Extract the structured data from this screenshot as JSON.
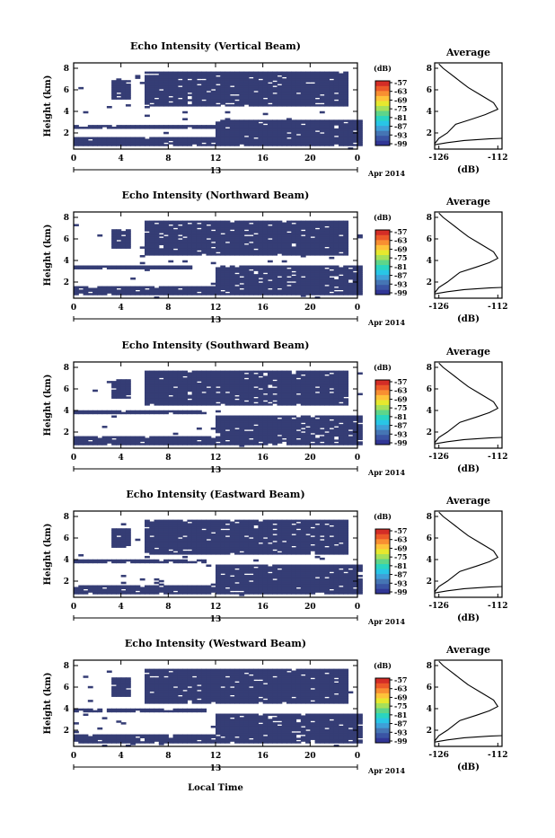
{
  "xlabel": "Local Time",
  "date_label": "Apr 2014",
  "day_label": "13",
  "x_ticks": [
    "0",
    "4",
    "8",
    "12",
    "16",
    "20",
    "0"
  ],
  "y_ticks": [
    "2",
    "4",
    "6",
    "8"
  ],
  "ylabel": "Height (km)",
  "colorbar": {
    "unit": "(dB)",
    "ticks": [
      "-57",
      "-63",
      "-69",
      "-75",
      "-81",
      "-87",
      "-93",
      "-99"
    ],
    "colors": [
      "#313695",
      "#3a54a4",
      "#4575b4",
      "#3f9fd8",
      "#29c5e6",
      "#2ad5c0",
      "#5ed58a",
      "#a6e05a",
      "#e6e82e",
      "#fec33a",
      "#f88f31",
      "#ec5a29",
      "#d42d26"
    ]
  },
  "fill_color": "#353d75",
  "avg_title": "Average",
  "avg_xticks": [
    "-126",
    "-112"
  ],
  "avg_xlabel": "(dB)",
  "avg_yticks": [
    "2",
    "4",
    "6",
    "8"
  ],
  "chart_data": [
    {
      "type": "heatmap",
      "title": "Echo Intensity (Vertical Beam)",
      "xlim": [
        0,
        24
      ],
      "ylim": [
        0.5,
        8.5
      ],
      "xlabel": "Local Time",
      "ylabel": "Height (km)",
      "regions": [
        {
          "t": [
            3,
            4.8
          ],
          "h": [
            5.0,
            6.8
          ]
        },
        {
          "t": [
            5.8,
            23
          ],
          "h": [
            4.5,
            7.6
          ]
        },
        {
          "t": [
            0,
            24
          ],
          "h": [
            0.8,
            1.5
          ]
        },
        {
          "t": [
            12,
            24
          ],
          "h": [
            1.6,
            3.2
          ]
        },
        {
          "t": [
            0,
            12
          ],
          "h": [
            2.3,
            2.7
          ]
        }
      ],
      "average": {
        "x": [
          -127,
          -126,
          -124,
          -122,
          -118,
          -115,
          -112,
          -113,
          -116,
          -119,
          -121,
          -123,
          -125,
          -126
        ],
        "y": [
          1.0,
          1.5,
          2.0,
          2.8,
          3.3,
          3.7,
          4.2,
          4.8,
          5.5,
          6.2,
          6.8,
          7.4,
          8.0,
          8.4
        ]
      }
    },
    {
      "type": "heatmap",
      "title": "Echo Intensity (Northward Beam)",
      "xlim": [
        0,
        24
      ],
      "ylim": [
        0.5,
        8.5
      ],
      "regions": [
        {
          "t": [
            3,
            4.8
          ],
          "h": [
            5.0,
            6.8
          ]
        },
        {
          "t": [
            5.8,
            23
          ],
          "h": [
            4.5,
            7.6
          ]
        },
        {
          "t": [
            0,
            24
          ],
          "h": [
            0.8,
            1.5
          ]
        },
        {
          "t": [
            12,
            24
          ],
          "h": [
            1.6,
            3.4
          ]
        },
        {
          "t": [
            0,
            10
          ],
          "h": [
            3.2,
            3.5
          ]
        }
      ],
      "average": {
        "x": [
          -127,
          -126,
          -124,
          -121,
          -117,
          -114,
          -112,
          -113,
          -116,
          -119,
          -121,
          -123,
          -125,
          -126
        ],
        "y": [
          1.0,
          1.5,
          2.0,
          2.9,
          3.4,
          3.8,
          4.2,
          4.8,
          5.5,
          6.2,
          6.8,
          7.4,
          8.0,
          8.4
        ]
      }
    },
    {
      "type": "heatmap",
      "title": "Echo Intensity (Southward Beam)",
      "xlim": [
        0,
        24
      ],
      "ylim": [
        0.5,
        8.5
      ],
      "regions": [
        {
          "t": [
            3,
            4.8
          ],
          "h": [
            5.0,
            6.8
          ]
        },
        {
          "t": [
            5.8,
            23
          ],
          "h": [
            4.5,
            7.6
          ]
        },
        {
          "t": [
            0,
            24
          ],
          "h": [
            0.8,
            1.5
          ]
        },
        {
          "t": [
            12,
            24
          ],
          "h": [
            1.6,
            3.4
          ]
        },
        {
          "t": [
            0,
            11
          ],
          "h": [
            3.6,
            4.0
          ]
        }
      ],
      "average": {
        "x": [
          -127,
          -126,
          -124,
          -121,
          -117,
          -114,
          -112,
          -113,
          -116,
          -119,
          -121,
          -123,
          -125,
          -126
        ],
        "y": [
          1.0,
          1.5,
          2.0,
          2.9,
          3.4,
          3.8,
          4.2,
          4.8,
          5.5,
          6.2,
          6.8,
          7.4,
          8.0,
          8.4
        ]
      }
    },
    {
      "type": "heatmap",
      "title": "Echo Intensity (Eastward Beam)",
      "xlim": [
        0,
        24
      ],
      "ylim": [
        0.5,
        8.5
      ],
      "regions": [
        {
          "t": [
            3,
            4.8
          ],
          "h": [
            5.0,
            6.8
          ]
        },
        {
          "t": [
            5.8,
            23
          ],
          "h": [
            4.5,
            7.6
          ]
        },
        {
          "t": [
            0,
            24
          ],
          "h": [
            0.8,
            1.5
          ]
        },
        {
          "t": [
            12,
            24
          ],
          "h": [
            1.6,
            3.4
          ]
        },
        {
          "t": [
            0,
            11
          ],
          "h": [
            3.6,
            4.0
          ]
        }
      ],
      "average": {
        "x": [
          -127,
          -126,
          -124,
          -121,
          -117,
          -114,
          -112,
          -113,
          -116,
          -119,
          -121,
          -123,
          -125,
          -126
        ],
        "y": [
          1.0,
          1.5,
          2.0,
          2.9,
          3.4,
          3.8,
          4.2,
          4.8,
          5.5,
          6.2,
          6.8,
          7.4,
          8.0,
          8.4
        ]
      }
    },
    {
      "type": "heatmap",
      "title": "Echo Intensity (Westward Beam)",
      "xlim": [
        0,
        24
      ],
      "ylim": [
        0.5,
        8.5
      ],
      "regions": [
        {
          "t": [
            3,
            4.8
          ],
          "h": [
            5.0,
            6.8
          ]
        },
        {
          "t": [
            5.8,
            23
          ],
          "h": [
            4.5,
            7.6
          ]
        },
        {
          "t": [
            0,
            24
          ],
          "h": [
            0.8,
            1.5
          ]
        },
        {
          "t": [
            12,
            24
          ],
          "h": [
            1.6,
            3.4
          ]
        },
        {
          "t": [
            0,
            11
          ],
          "h": [
            3.6,
            4.0
          ]
        }
      ],
      "average": {
        "x": [
          -127,
          -126,
          -124,
          -121,
          -117,
          -114,
          -112,
          -113,
          -116,
          -119,
          -121,
          -123,
          -125,
          -126
        ],
        "y": [
          1.0,
          1.5,
          2.0,
          2.9,
          3.4,
          3.8,
          4.2,
          4.8,
          5.5,
          6.2,
          6.8,
          7.4,
          8.0,
          8.4
        ]
      }
    }
  ]
}
